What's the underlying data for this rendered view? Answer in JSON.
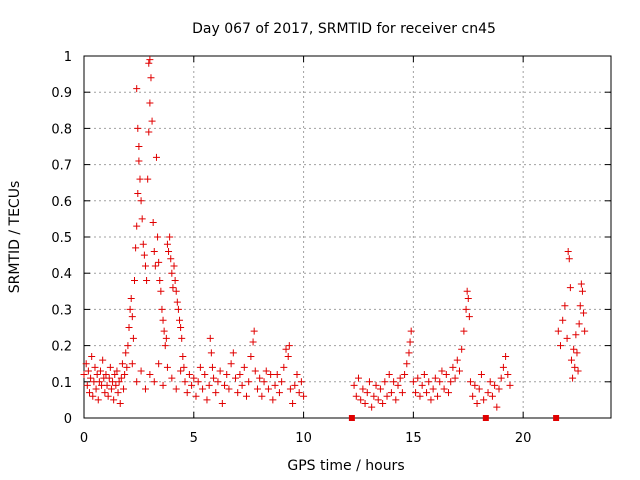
{
  "chart_data": {
    "type": "scatter",
    "title": "Day 067 of 2017, SRMTID for receiver cn45",
    "xlabel": "GPS time / hours",
    "ylabel": "SRMTID / TECUs",
    "xlim": [
      0,
      24
    ],
    "ylim": [
      0,
      1
    ],
    "xticks": [
      0,
      5,
      10,
      15,
      20
    ],
    "xtick_labels": [
      "0",
      "5",
      "10",
      "15",
      "20"
    ],
    "yticks": [
      0,
      0.1,
      0.2,
      0.3,
      0.4,
      0.5,
      0.6,
      0.7,
      0.8,
      0.9,
      1
    ],
    "ytick_labels": [
      "0",
      "0.1",
      "0.2",
      "0.3",
      "0.4",
      "0.5",
      "0.6",
      "0.7",
      "0.8",
      "0.9",
      "1"
    ],
    "grid": true,
    "marker": "plus",
    "color": "#e00000",
    "series": [
      {
        "name": "SRMTID",
        "points": [
          [
            0.0,
            0.12
          ],
          [
            0.1,
            0.15
          ],
          [
            0.15,
            0.09
          ],
          [
            0.2,
            0.13
          ],
          [
            0.25,
            0.07
          ],
          [
            0.3,
            0.11
          ],
          [
            0.35,
            0.17
          ],
          [
            0.4,
            0.06
          ],
          [
            0.45,
            0.1
          ],
          [
            0.5,
            0.14
          ],
          [
            0.55,
            0.08
          ],
          [
            0.6,
            0.12
          ],
          [
            0.65,
            0.05
          ],
          [
            0.7,
            0.1
          ],
          [
            0.75,
            0.13
          ],
          [
            0.8,
            0.09
          ],
          [
            0.85,
            0.16
          ],
          [
            0.9,
            0.11
          ],
          [
            0.95,
            0.07
          ],
          [
            1.0,
            0.12
          ],
          [
            1.05,
            0.09
          ],
          [
            1.1,
            0.06
          ],
          [
            1.15,
            0.11
          ],
          [
            1.2,
            0.14
          ],
          [
            1.25,
            0.08
          ],
          [
            1.3,
            0.1
          ],
          [
            1.35,
            0.05
          ],
          [
            1.4,
            0.12
          ],
          [
            1.45,
            0.09
          ],
          [
            1.5,
            0.13
          ],
          [
            1.55,
            0.07
          ],
          [
            1.6,
            0.1
          ],
          [
            1.65,
            0.04
          ],
          [
            1.7,
            0.11
          ],
          [
            1.75,
            0.15
          ],
          [
            1.8,
            0.08
          ],
          [
            1.85,
            0.12
          ],
          [
            1.9,
            0.18
          ],
          [
            1.95,
            0.14
          ],
          [
            2.0,
            0.2
          ],
          [
            2.05,
            0.25
          ],
          [
            2.1,
            0.3
          ],
          [
            2.15,
            0.33
          ],
          [
            2.2,
            0.28
          ],
          [
            2.25,
            0.22
          ],
          [
            2.3,
            0.38
          ],
          [
            2.35,
            0.47
          ],
          [
            2.4,
            0.53
          ],
          [
            2.45,
            0.62
          ],
          [
            2.5,
            0.71
          ],
          [
            2.4,
            0.91
          ],
          [
            2.45,
            0.8
          ],
          [
            2.5,
            0.75
          ],
          [
            2.55,
            0.66
          ],
          [
            2.6,
            0.6
          ],
          [
            2.65,
            0.55
          ],
          [
            2.7,
            0.48
          ],
          [
            2.75,
            0.45
          ],
          [
            2.8,
            0.42
          ],
          [
            2.85,
            0.38
          ],
          [
            2.9,
            0.66
          ],
          [
            2.95,
            0.79
          ],
          [
            3.0,
            0.87
          ],
          [
            3.0,
            0.99
          ],
          [
            3.05,
            0.94
          ],
          [
            2.95,
            0.98
          ],
          [
            3.1,
            0.82
          ],
          [
            3.15,
            0.54
          ],
          [
            3.2,
            0.46
          ],
          [
            3.25,
            0.42
          ],
          [
            3.3,
            0.72
          ],
          [
            3.35,
            0.5
          ],
          [
            3.4,
            0.43
          ],
          [
            3.45,
            0.38
          ],
          [
            3.5,
            0.35
          ],
          [
            3.55,
            0.3
          ],
          [
            3.6,
            0.27
          ],
          [
            3.65,
            0.24
          ],
          [
            3.7,
            0.2
          ],
          [
            3.75,
            0.22
          ],
          [
            3.8,
            0.48
          ],
          [
            3.85,
            0.46
          ],
          [
            3.9,
            0.5
          ],
          [
            3.95,
            0.44
          ],
          [
            4.0,
            0.4
          ],
          [
            4.05,
            0.36
          ],
          [
            4.1,
            0.42
          ],
          [
            4.15,
            0.38
          ],
          [
            4.2,
            0.35
          ],
          [
            4.25,
            0.32
          ],
          [
            4.3,
            0.3
          ],
          [
            4.35,
            0.27
          ],
          [
            4.4,
            0.25
          ],
          [
            4.45,
            0.22
          ],
          [
            4.5,
            0.17
          ],
          [
            4.55,
            0.14
          ],
          [
            2.2,
            0.15
          ],
          [
            2.4,
            0.1
          ],
          [
            2.6,
            0.13
          ],
          [
            2.8,
            0.08
          ],
          [
            3.0,
            0.12
          ],
          [
            3.2,
            0.1
          ],
          [
            3.4,
            0.15
          ],
          [
            3.6,
            0.09
          ],
          [
            3.8,
            0.14
          ],
          [
            4.0,
            0.11
          ],
          [
            4.2,
            0.08
          ],
          [
            4.4,
            0.13
          ],
          [
            4.6,
            0.1
          ],
          [
            4.7,
            0.07
          ],
          [
            4.8,
            0.12
          ],
          [
            4.9,
            0.09
          ],
          [
            5.0,
            0.11
          ],
          [
            5.1,
            0.06
          ],
          [
            5.2,
            0.1
          ],
          [
            5.3,
            0.14
          ],
          [
            5.4,
            0.08
          ],
          [
            5.5,
            0.12
          ],
          [
            5.6,
            0.05
          ],
          [
            5.7,
            0.09
          ],
          [
            5.75,
            0.22
          ],
          [
            5.8,
            0.18
          ],
          [
            5.85,
            0.14
          ],
          [
            5.9,
            0.11
          ],
          [
            6.0,
            0.07
          ],
          [
            6.1,
            0.1
          ],
          [
            6.2,
            0.13
          ],
          [
            6.3,
            0.04
          ],
          [
            6.4,
            0.09
          ],
          [
            6.5,
            0.12
          ],
          [
            6.6,
            0.08
          ],
          [
            6.7,
            0.15
          ],
          [
            6.8,
            0.18
          ],
          [
            6.9,
            0.11
          ],
          [
            7.0,
            0.07
          ],
          [
            7.1,
            0.12
          ],
          [
            7.2,
            0.09
          ],
          [
            7.3,
            0.14
          ],
          [
            7.4,
            0.06
          ],
          [
            7.5,
            0.1
          ],
          [
            7.6,
            0.17
          ],
          [
            7.7,
            0.21
          ],
          [
            7.75,
            0.24
          ],
          [
            7.8,
            0.13
          ],
          [
            7.9,
            0.08
          ],
          [
            8.0,
            0.11
          ],
          [
            8.1,
            0.06
          ],
          [
            8.2,
            0.1
          ],
          [
            8.3,
            0.13
          ],
          [
            8.4,
            0.08
          ],
          [
            8.5,
            0.12
          ],
          [
            8.6,
            0.05
          ],
          [
            8.7,
            0.09
          ],
          [
            8.8,
            0.12
          ],
          [
            8.9,
            0.07
          ],
          [
            9.0,
            0.1
          ],
          [
            9.1,
            0.14
          ],
          [
            9.2,
            0.19
          ],
          [
            9.3,
            0.17
          ],
          [
            9.35,
            0.2
          ],
          [
            9.4,
            0.08
          ],
          [
            9.5,
            0.04
          ],
          [
            9.6,
            0.09
          ],
          [
            9.7,
            0.12
          ],
          [
            9.8,
            0.07
          ],
          [
            9.9,
            0.1
          ],
          [
            10.0,
            0.06
          ],
          [
            12.2,
            0.0
          ],
          [
            12.3,
            0.09
          ],
          [
            12.4,
            0.06
          ],
          [
            12.5,
            0.11
          ],
          [
            12.6,
            0.05
          ],
          [
            12.7,
            0.08
          ],
          [
            12.8,
            0.04
          ],
          [
            12.9,
            0.07
          ],
          [
            13.0,
            0.1
          ],
          [
            13.1,
            0.03
          ],
          [
            13.2,
            0.06
          ],
          [
            13.3,
            0.09
          ],
          [
            13.4,
            0.05
          ],
          [
            13.5,
            0.08
          ],
          [
            13.6,
            0.04
          ],
          [
            13.7,
            0.1
          ],
          [
            13.8,
            0.06
          ],
          [
            13.9,
            0.12
          ],
          [
            14.0,
            0.07
          ],
          [
            14.1,
            0.1
          ],
          [
            14.2,
            0.05
          ],
          [
            14.3,
            0.09
          ],
          [
            14.4,
            0.11
          ],
          [
            14.5,
            0.07
          ],
          [
            14.6,
            0.12
          ],
          [
            14.7,
            0.15
          ],
          [
            14.8,
            0.18
          ],
          [
            14.85,
            0.21
          ],
          [
            14.9,
            0.24
          ],
          [
            15.0,
            0.1
          ],
          [
            15.1,
            0.07
          ],
          [
            15.2,
            0.11
          ],
          [
            15.3,
            0.06
          ],
          [
            15.4,
            0.09
          ],
          [
            15.5,
            0.12
          ],
          [
            15.6,
            0.07
          ],
          [
            15.7,
            0.1
          ],
          [
            15.8,
            0.05
          ],
          [
            15.9,
            0.08
          ],
          [
            16.0,
            0.11
          ],
          [
            16.1,
            0.06
          ],
          [
            16.2,
            0.1
          ],
          [
            16.3,
            0.13
          ],
          [
            16.4,
            0.08
          ],
          [
            16.5,
            0.12
          ],
          [
            16.6,
            0.07
          ],
          [
            16.7,
            0.1
          ],
          [
            16.8,
            0.14
          ],
          [
            16.9,
            0.11
          ],
          [
            17.0,
            0.16
          ],
          [
            17.1,
            0.13
          ],
          [
            17.2,
            0.19
          ],
          [
            17.3,
            0.24
          ],
          [
            17.4,
            0.3
          ],
          [
            17.45,
            0.35
          ],
          [
            17.5,
            0.33
          ],
          [
            17.55,
            0.28
          ],
          [
            17.6,
            0.1
          ],
          [
            17.7,
            0.06
          ],
          [
            17.8,
            0.09
          ],
          [
            17.9,
            0.04
          ],
          [
            18.0,
            0.08
          ],
          [
            18.1,
            0.12
          ],
          [
            18.2,
            0.05
          ],
          [
            18.3,
            0.0
          ],
          [
            18.4,
            0.07
          ],
          [
            18.5,
            0.1
          ],
          [
            18.6,
            0.06
          ],
          [
            18.7,
            0.09
          ],
          [
            18.8,
            0.03
          ],
          [
            18.9,
            0.08
          ],
          [
            19.0,
            0.11
          ],
          [
            19.1,
            0.14
          ],
          [
            19.2,
            0.17
          ],
          [
            19.3,
            0.12
          ],
          [
            19.4,
            0.09
          ],
          [
            21.5,
            0.0
          ],
          [
            21.6,
            0.24
          ],
          [
            21.7,
            0.2
          ],
          [
            21.8,
            0.27
          ],
          [
            21.9,
            0.31
          ],
          [
            22.0,
            0.22
          ],
          [
            22.05,
            0.46
          ],
          [
            22.1,
            0.44
          ],
          [
            22.15,
            0.36
          ],
          [
            22.2,
            0.16
          ],
          [
            22.25,
            0.11
          ],
          [
            22.3,
            0.19
          ],
          [
            22.35,
            0.14
          ],
          [
            22.4,
            0.23
          ],
          [
            22.45,
            0.18
          ],
          [
            22.5,
            0.13
          ],
          [
            22.55,
            0.26
          ],
          [
            22.6,
            0.31
          ],
          [
            22.65,
            0.37
          ],
          [
            22.7,
            0.35
          ],
          [
            22.75,
            0.29
          ],
          [
            22.8,
            0.24
          ]
        ]
      }
    ]
  }
}
